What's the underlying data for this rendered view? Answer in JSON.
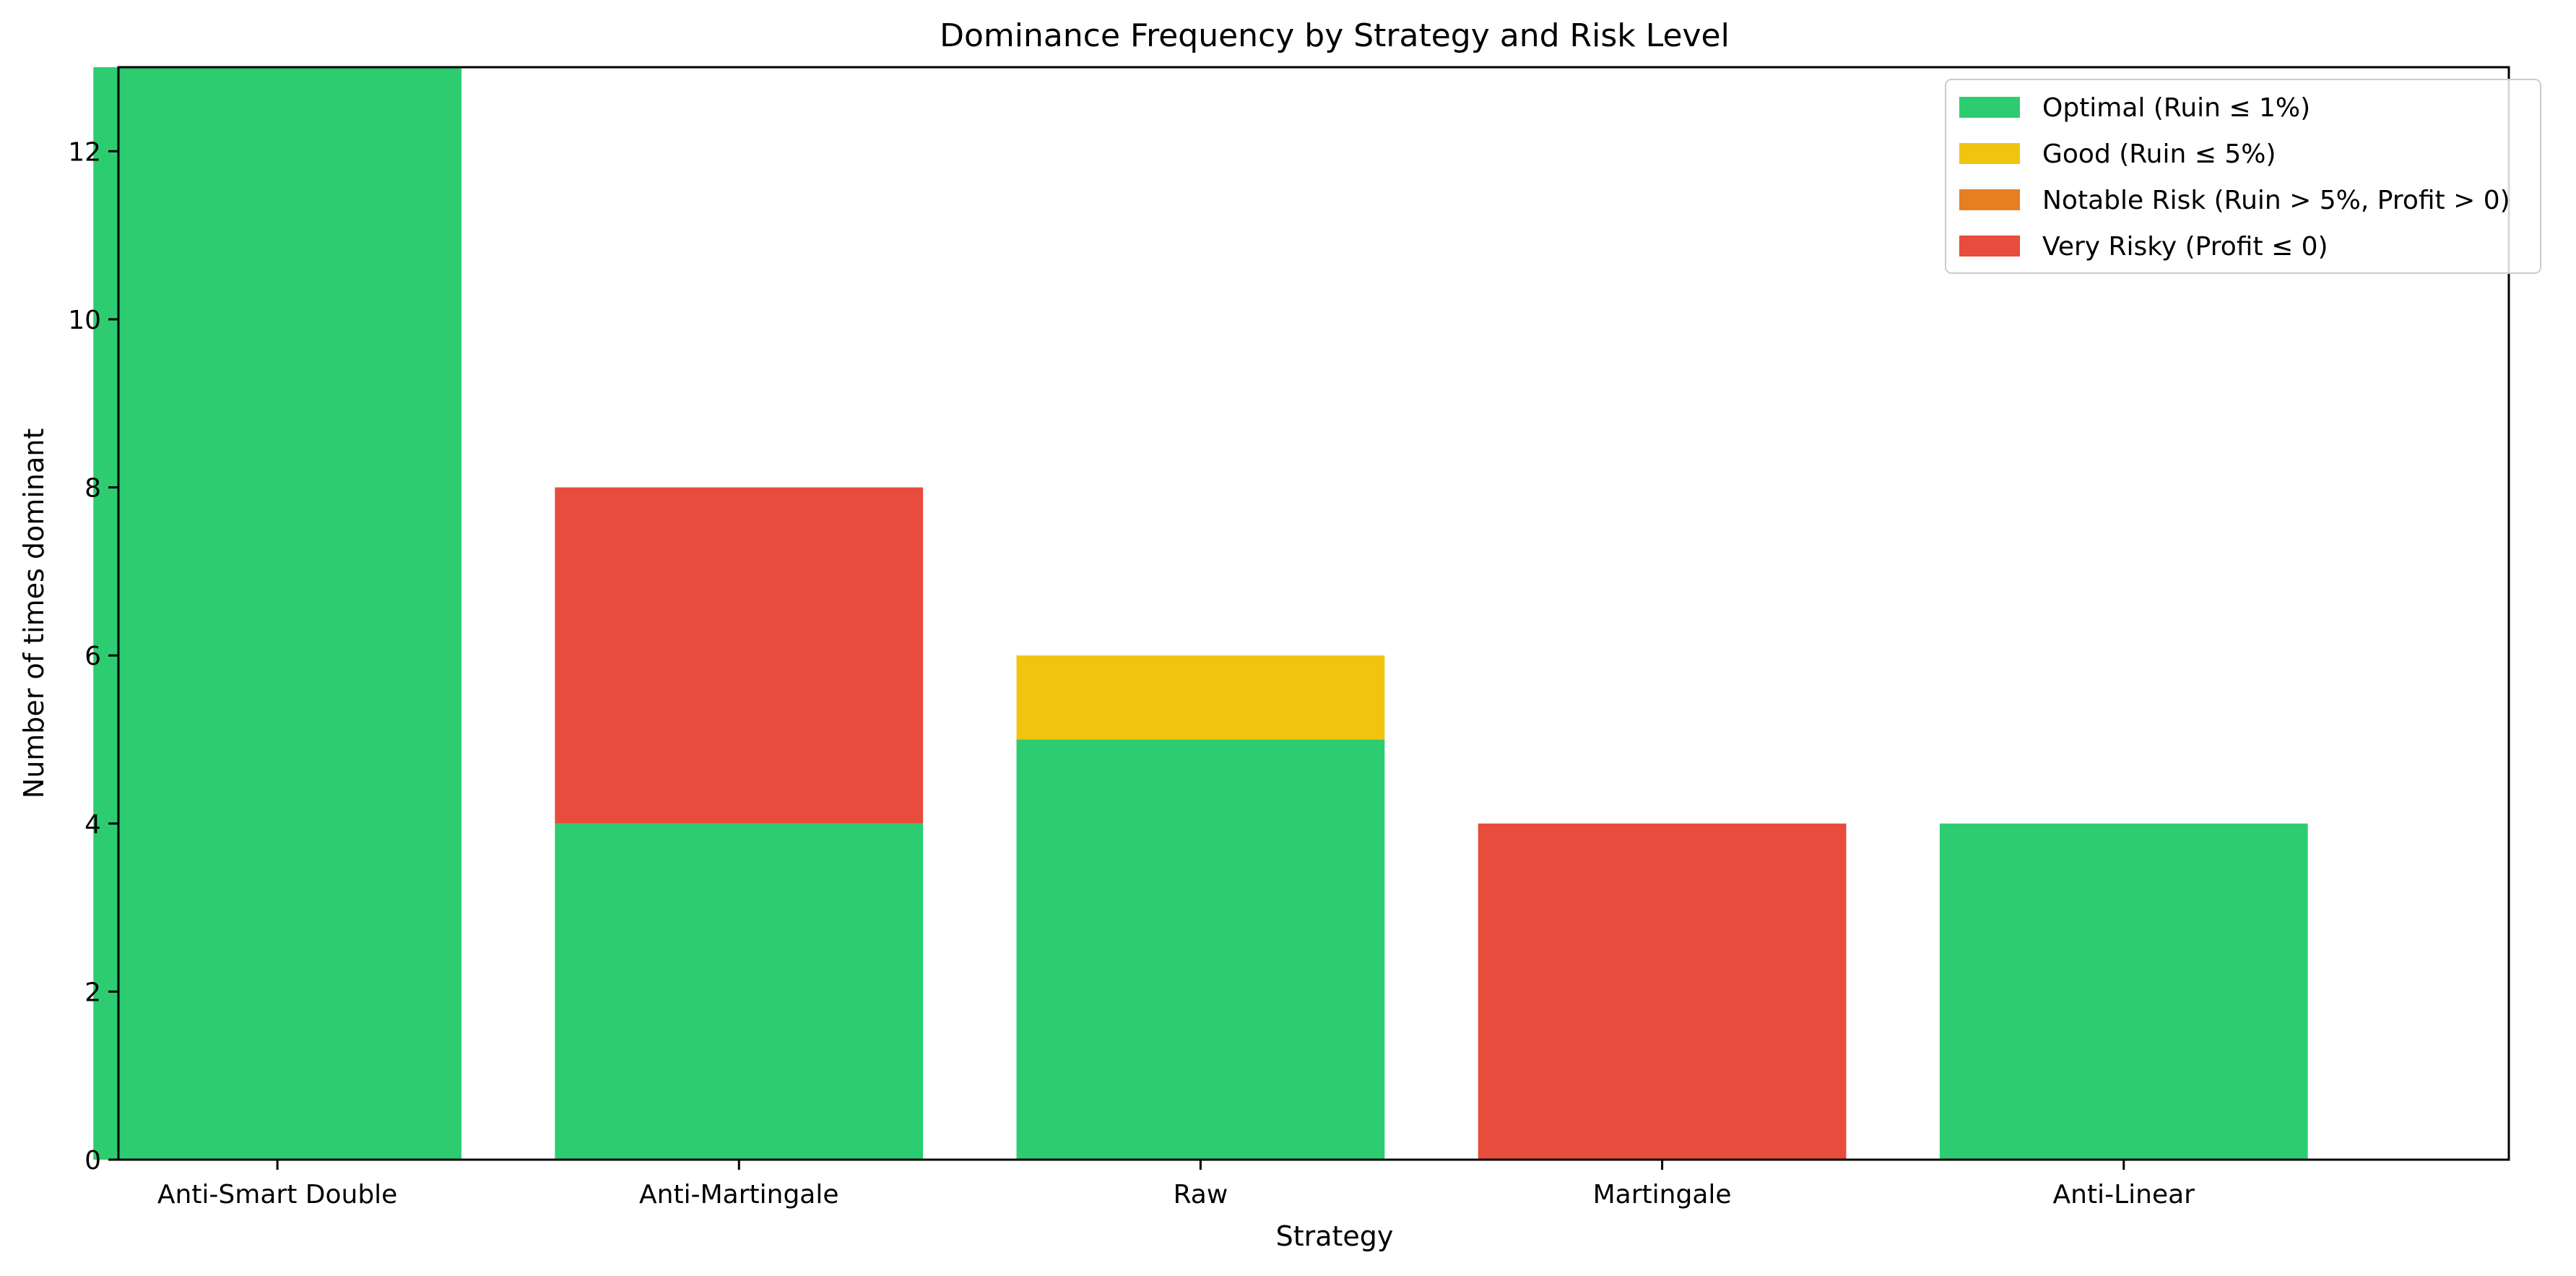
{
  "chart_data": {
    "type": "bar",
    "stacked": true,
    "title": "Dominance Frequency by Strategy and Risk Level",
    "xlabel": "Strategy",
    "ylabel": "Number of times dominant",
    "categories": [
      "Anti-Smart Double",
      "Anti-Martingale",
      "Raw",
      "Martingale",
      "Anti-Linear"
    ],
    "ylim": [
      0,
      13
    ],
    "yticks": [
      0,
      2,
      4,
      6,
      8,
      10,
      12
    ],
    "grid": false,
    "legend_position": "top-right",
    "series": [
      {
        "name": "Optimal (Ruin ≤ 1%)",
        "color": "#2ecc71",
        "values": [
          13,
          4,
          5,
          0,
          4
        ]
      },
      {
        "name": "Good (Ruin ≤ 5%)",
        "color": "#f1c40f",
        "values": [
          0,
          0,
          1,
          0,
          0
        ]
      },
      {
        "name": "Notable Risk (Ruin > 5%, Profit > 0)",
        "color": "#e67e22",
        "values": [
          0,
          0,
          0,
          0,
          0
        ]
      },
      {
        "name": "Very Risky (Profit ≤ 0)",
        "color": "#e74c3c",
        "values": [
          0,
          4,
          0,
          4,
          0
        ]
      }
    ]
  }
}
